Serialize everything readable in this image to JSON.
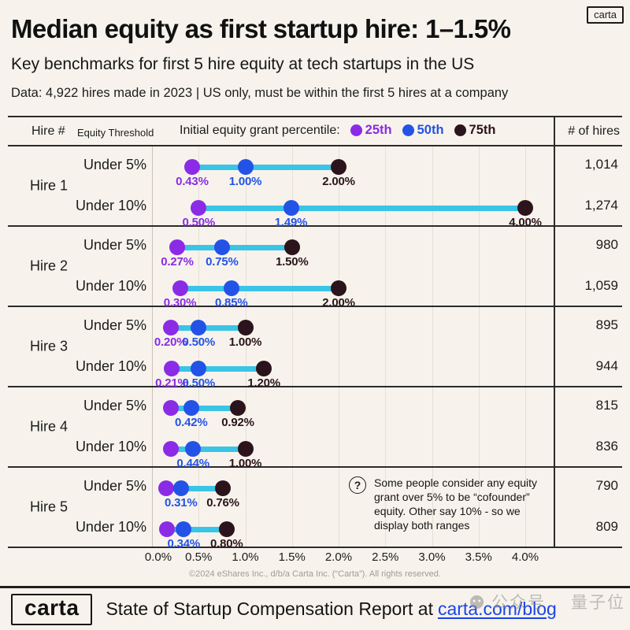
{
  "colors": {
    "background": "#f7f3ec",
    "p25": "#8b2be6",
    "p50": "#2353e6",
    "p75": "#2b141b",
    "connector": "#3ac4e6",
    "link": "#1a44e8",
    "border": "#2b2b2b"
  },
  "header": {
    "badge": "carta",
    "title": "Median equity as first startup hire: 1–1.5%",
    "subtitle": "Key benchmarks for first 5 hire equity at tech startups in the US",
    "dataline": "Data: 4,922 hires made in 2023 | US only, must be within the first 5 hires at a company"
  },
  "table_header": {
    "hire": "Hire #",
    "threshold": "Equity Threshold",
    "legend_title": "Initial equity grant percentile:",
    "legend": [
      {
        "key": "p25",
        "label": "25th"
      },
      {
        "key": "p50",
        "label": "50th"
      },
      {
        "key": "p75",
        "label": "75th"
      }
    ],
    "hires": "# of hires"
  },
  "chart_data": {
    "type": "scatter",
    "variant": "dumbbell-range",
    "title": "Initial equity grant percentile by hire number",
    "series": [
      "25th",
      "50th",
      "75th"
    ],
    "xlim": [
      0,
      4
    ],
    "x_tick_labels": [
      "0.0%",
      "0.5%",
      "1.0%",
      "1.5%",
      "2.0%",
      "2.5%",
      "3.0%",
      "3.5%",
      "4.0%"
    ],
    "grid": "vertical, every 0.5%",
    "legend_position": "top header row",
    "rows": [
      {
        "hire": "Hire 1",
        "threshold": "Under 5%",
        "p25": 0.43,
        "p50": 1.0,
        "p75": 2.0,
        "label_p25": "0.43%",
        "label_p50": "1.00%",
        "label_p75": "2.00%",
        "hires": "1,014"
      },
      {
        "hire": "Hire 1",
        "threshold": "Under 10%",
        "p25": 0.5,
        "p50": 1.49,
        "p75": 4.0,
        "label_p25": "0.50%",
        "label_p50": "1.49%",
        "label_p75": "4.00%",
        "hires": "1,274"
      },
      {
        "hire": "Hire 2",
        "threshold": "Under 5%",
        "p25": 0.27,
        "p50": 0.75,
        "p75": 1.5,
        "label_p25": "0.27%",
        "label_p50": "0.75%",
        "label_p75": "1.50%",
        "hires": "980"
      },
      {
        "hire": "Hire 2",
        "threshold": "Under 10%",
        "p25": 0.3,
        "p50": 0.85,
        "p75": 2.0,
        "label_p25": "0.30%",
        "label_p50": "0.85%",
        "label_p75": "2.00%",
        "hires": "1,059"
      },
      {
        "hire": "Hire 3",
        "threshold": "Under 5%",
        "p25": 0.2,
        "p50": 0.5,
        "p75": 1.0,
        "label_p25": "0.20%",
        "label_p50": "0.50%",
        "label_p75": "1.00%",
        "hires": "895"
      },
      {
        "hire": "Hire 3",
        "threshold": "Under 10%",
        "p25": 0.21,
        "p50": 0.5,
        "p75": 1.2,
        "label_p25": "0.21%",
        "label_p50": "0.50%",
        "label_p75": "1.20%",
        "hires": "944"
      },
      {
        "hire": "Hire 4",
        "threshold": "Under 5%",
        "p25": 0.2,
        "p50": 0.42,
        "p75": 0.92,
        "label_p25": "",
        "label_p50": "0.42%",
        "label_p75": "0.92%",
        "hires": "815"
      },
      {
        "hire": "Hire 4",
        "threshold": "Under 10%",
        "p25": 0.2,
        "p50": 0.44,
        "p75": 1.0,
        "label_p25": "",
        "label_p50": "0.44%",
        "label_p75": "1.00%",
        "hires": "836"
      },
      {
        "hire": "Hire 5",
        "threshold": "Under 5%",
        "p25": 0.15,
        "p50": 0.31,
        "p75": 0.76,
        "label_p25": "",
        "label_p50": "0.31%",
        "label_p75": "0.76%",
        "hires": "790"
      },
      {
        "hire": "Hire 5",
        "threshold": "Under 10%",
        "p25": 0.16,
        "p50": 0.34,
        "p75": 0.8,
        "label_p25": "",
        "label_p50": "0.34%",
        "label_p75": "0.80%",
        "hires": "809"
      }
    ]
  },
  "note": {
    "icon": "?",
    "text": "Some people consider any equity grant over 5% to be “cofounder” equity. Other say 10% - so we display both ranges"
  },
  "copyright": "©2024 eShares Inc., d/b/a Carta Inc. (“Carta”). All rights reserved.",
  "footer": {
    "logo": "carta",
    "text": "State of Startup Compensation Report at",
    "link": "carta.com/blog"
  },
  "watermark": {
    "text1": "公众号",
    "text2": "量子位"
  }
}
